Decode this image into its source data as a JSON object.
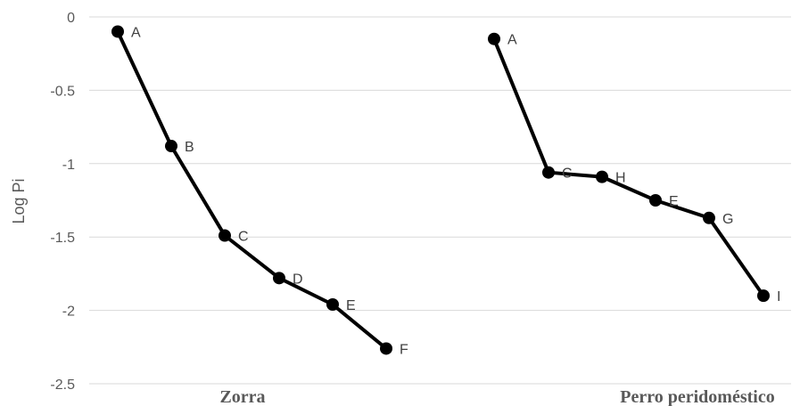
{
  "chart_data": {
    "type": "line",
    "ylabel": "Log Pi",
    "xlabel": "",
    "ylim": [
      -2.5,
      0
    ],
    "yticks": [
      0,
      -0.5,
      -1,
      -1.5,
      -2,
      -2.5
    ],
    "ytick_labels": [
      "0",
      "-0.5",
      "-1",
      "-1.5",
      "-2",
      "-2.5"
    ],
    "grid": true,
    "legend": "none",
    "categories": [
      "Zorra",
      "Perro peridoméstico"
    ],
    "series": [
      {
        "points": [
          {
            "label": "A",
            "y": -0.1
          },
          {
            "label": "B",
            "y": -0.88
          },
          {
            "label": "C",
            "y": -1.49
          },
          {
            "label": "D",
            "y": -1.78
          },
          {
            "label": "E",
            "y": -1.96
          },
          {
            "label": "F",
            "y": -2.26
          }
        ]
      },
      {
        "points": [
          {
            "label": "A",
            "y": -0.15
          },
          {
            "label": "C",
            "y": -1.06
          },
          {
            "label": "H",
            "y": -1.09
          },
          {
            "label": "E",
            "y": -1.25
          },
          {
            "label": "G",
            "y": -1.37
          },
          {
            "label": "I",
            "y": -1.9
          }
        ]
      }
    ]
  }
}
